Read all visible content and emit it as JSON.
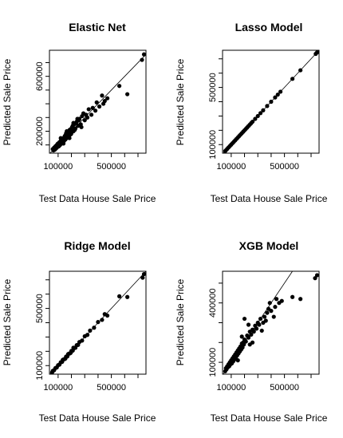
{
  "chart_data": [
    {
      "type": "scatter",
      "title": "Elastic Net",
      "xlabel": "Test Data House Sale Price",
      "ylabel": "Predicted Sale Price",
      "xlim": [
        35000,
        760000
      ],
      "ylim": [
        40000,
        790000
      ],
      "x_ticks": [
        100000,
        500000
      ],
      "x_tick_labels": [
        "100000",
        "500000"
      ],
      "y_ticks": [
        200000,
        600000
      ],
      "y_tick_labels": [
        "200000",
        "600000"
      ],
      "reference_line": "y = x",
      "points": [
        [
          745000,
          760000
        ],
        [
          730000,
          720000
        ],
        [
          620000,
          470000
        ],
        [
          560000,
          530000
        ],
        [
          470000,
          440000
        ],
        [
          430000,
          460000
        ],
        [
          440000,
          400000
        ],
        [
          390000,
          410000
        ],
        [
          360000,
          370000
        ],
        [
          330000,
          360000
        ],
        [
          310000,
          320000
        ],
        [
          300000,
          280000
        ],
        [
          280000,
          310000
        ],
        [
          270000,
          250000
        ],
        [
          260000,
          290000
        ],
        [
          250000,
          240000
        ],
        [
          240000,
          270000
        ],
        [
          230000,
          220000
        ],
        [
          220000,
          250000
        ],
        [
          215000,
          200000
        ],
        [
          205000,
          230000
        ],
        [
          200000,
          190000
        ],
        [
          195000,
          215000
        ],
        [
          190000,
          175000
        ],
        [
          185000,
          205000
        ],
        [
          180000,
          160000
        ],
        [
          175000,
          190000
        ],
        [
          170000,
          170000
        ],
        [
          165000,
          150000
        ],
        [
          160000,
          185000
        ],
        [
          155000,
          140000
        ],
        [
          150000,
          165000
        ],
        [
          145000,
          130000
        ],
        [
          140000,
          150000
        ],
        [
          135000,
          120000
        ],
        [
          130000,
          140000
        ],
        [
          125000,
          110000
        ],
        [
          120000,
          130000
        ],
        [
          115000,
          100000
        ],
        [
          110000,
          120000
        ],
        [
          105000,
          90000
        ],
        [
          100000,
          105000
        ],
        [
          95000,
          85000
        ],
        [
          90000,
          100000
        ],
        [
          85000,
          75000
        ],
        [
          80000,
          90000
        ],
        [
          75000,
          65000
        ],
        [
          70000,
          80000
        ],
        [
          65000,
          60000
        ],
        [
          60000,
          70000
        ],
        [
          350000,
          320000
        ],
        [
          320000,
          300000
        ],
        [
          290000,
          330000
        ],
        [
          275000,
          230000
        ],
        [
          255000,
          280000
        ],
        [
          235000,
          260000
        ],
        [
          225000,
          210000
        ],
        [
          210000,
          240000
        ],
        [
          198000,
          180000
        ],
        [
          187000,
          210000
        ],
        [
          178000,
          195000
        ],
        [
          168000,
          160000
        ],
        [
          158000,
          175000
        ],
        [
          148000,
          155000
        ],
        [
          138000,
          135000
        ],
        [
          128000,
          125000
        ],
        [
          118000,
          115000
        ],
        [
          108000,
          95000
        ],
        [
          98000,
          110000
        ],
        [
          88000,
          80000
        ],
        [
          78000,
          70000
        ],
        [
          380000,
          350000
        ],
        [
          410000,
          380000
        ],
        [
          450000,
          420000
        ],
        [
          245000,
          290000
        ],
        [
          215000,
          260000
        ],
        [
          185000,
          150000
        ],
        [
          165000,
          200000
        ],
        [
          140000,
          110000
        ],
        [
          120000,
          150000
        ]
      ]
    },
    {
      "type": "scatter",
      "title": "Lasso Model",
      "xlabel": "Test Data House Sale Price",
      "ylabel": "Predicted Sale Price",
      "xlim": [
        35000,
        760000
      ],
      "ylim": [
        40000,
        760000
      ],
      "x_ticks": [
        100000,
        500000
      ],
      "x_tick_labels": [
        "100000",
        "500000"
      ],
      "y_ticks": [
        100000,
        500000
      ],
      "y_tick_labels": [
        "100000",
        "500000"
      ],
      "reference_line": "y = x",
      "points": [
        [
          745000,
          745000
        ],
        [
          735000,
          735000
        ],
        [
          620000,
          620000
        ],
        [
          560000,
          560000
        ],
        [
          470000,
          470000
        ],
        [
          450000,
          450000
        ],
        [
          430000,
          430000
        ],
        [
          400000,
          400000
        ],
        [
          370000,
          370000
        ],
        [
          340000,
          340000
        ],
        [
          320000,
          320000
        ],
        [
          300000,
          300000
        ],
        [
          280000,
          280000
        ],
        [
          260000,
          260000
        ],
        [
          250000,
          250000
        ],
        [
          240000,
          240000
        ],
        [
          230000,
          230000
        ],
        [
          220000,
          220000
        ],
        [
          210000,
          210000
        ],
        [
          200000,
          200000
        ],
        [
          190000,
          190000
        ],
        [
          180000,
          180000
        ],
        [
          170000,
          170000
        ],
        [
          160000,
          160000
        ],
        [
          150000,
          150000
        ],
        [
          140000,
          140000
        ],
        [
          130000,
          130000
        ],
        [
          120000,
          120000
        ],
        [
          110000,
          110000
        ],
        [
          100000,
          100000
        ],
        [
          90000,
          90000
        ],
        [
          80000,
          80000
        ],
        [
          70000,
          70000
        ],
        [
          60000,
          60000
        ],
        [
          55000,
          55000
        ]
      ]
    },
    {
      "type": "scatter",
      "title": "Ridge Model",
      "xlabel": "Test Data House Sale Price",
      "ylabel": "Predicted Sale Price",
      "xlim": [
        35000,
        760000
      ],
      "ylim": [
        40000,
        760000
      ],
      "x_ticks": [
        100000,
        500000
      ],
      "x_tick_labels": [
        "100000",
        "500000"
      ],
      "y_ticks": [
        100000,
        500000
      ],
      "y_tick_labels": [
        "100000",
        "500000"
      ],
      "reference_line": "y = x",
      "points": [
        [
          745000,
          740000
        ],
        [
          735000,
          715000
        ],
        [
          620000,
          580000
        ],
        [
          560000,
          585000
        ],
        [
          470000,
          450000
        ],
        [
          450000,
          460000
        ],
        [
          430000,
          420000
        ],
        [
          400000,
          405000
        ],
        [
          370000,
          365000
        ],
        [
          340000,
          345000
        ],
        [
          320000,
          315000
        ],
        [
          300000,
          305000
        ],
        [
          280000,
          275000
        ],
        [
          260000,
          265000
        ],
        [
          250000,
          245000
        ],
        [
          240000,
          243000
        ],
        [
          230000,
          225000
        ],
        [
          220000,
          222000
        ],
        [
          210000,
          205000
        ],
        [
          200000,
          203000
        ],
        [
          190000,
          186000
        ],
        [
          180000,
          183000
        ],
        [
          170000,
          165000
        ],
        [
          160000,
          163000
        ],
        [
          150000,
          146000
        ],
        [
          140000,
          143000
        ],
        [
          130000,
          126000
        ],
        [
          120000,
          123000
        ],
        [
          110000,
          107000
        ],
        [
          100000,
          103000
        ],
        [
          90000,
          87000
        ],
        [
          80000,
          83000
        ],
        [
          70000,
          68000
        ],
        [
          60000,
          63000
        ],
        [
          55000,
          52000
        ],
        [
          215000,
          225000
        ],
        [
          195000,
          190000
        ],
        [
          175000,
          180000
        ],
        [
          155000,
          150000
        ],
        [
          135000,
          140000
        ]
      ]
    },
    {
      "type": "scatter",
      "title": "XGB Model",
      "xlabel": "Test Data House Sale Price",
      "ylabel": "Predicted Sale Price",
      "xlim": [
        35000,
        760000
      ],
      "ylim": [
        40000,
        560000
      ],
      "x_ticks": [
        100000,
        500000
      ],
      "x_tick_labels": [
        "100000",
        "500000"
      ],
      "y_ticks": [
        100000,
        400000
      ],
      "y_tick_labels": [
        "100000",
        "400000"
      ],
      "reference_line": "y = x",
      "points": [
        [
          745000,
          540000
        ],
        [
          730000,
          525000
        ],
        [
          620000,
          420000
        ],
        [
          560000,
          430000
        ],
        [
          480000,
          410000
        ],
        [
          460000,
          400000
        ],
        [
          440000,
          420000
        ],
        [
          430000,
          380000
        ],
        [
          400000,
          360000
        ],
        [
          380000,
          370000
        ],
        [
          370000,
          350000
        ],
        [
          350000,
          330000
        ],
        [
          340000,
          300000
        ],
        [
          320000,
          320000
        ],
        [
          310000,
          290000
        ],
        [
          300000,
          300000
        ],
        [
          290000,
          270000
        ],
        [
          280000,
          285000
        ],
        [
          270000,
          255000
        ],
        [
          260000,
          265000
        ],
        [
          250000,
          240000
        ],
        [
          240000,
          255000
        ],
        [
          230000,
          225000
        ],
        [
          220000,
          235000
        ],
        [
          210000,
          205000
        ],
        [
          200000,
          215000
        ],
        [
          195000,
          190000
        ],
        [
          190000,
          200000
        ],
        [
          185000,
          175000
        ],
        [
          180000,
          195000
        ],
        [
          175000,
          165000
        ],
        [
          170000,
          180000
        ],
        [
          165000,
          155000
        ],
        [
          160000,
          170000
        ],
        [
          155000,
          145000
        ],
        [
          150000,
          160000
        ],
        [
          145000,
          135000
        ],
        [
          140000,
          150000
        ],
        [
          135000,
          125000
        ],
        [
          130000,
          140000
        ],
        [
          125000,
          115000
        ],
        [
          120000,
          130000
        ],
        [
          115000,
          105000
        ],
        [
          110000,
          120000
        ],
        [
          105000,
          95000
        ],
        [
          100000,
          110000
        ],
        [
          95000,
          90000
        ],
        [
          90000,
          100000
        ],
        [
          85000,
          80000
        ],
        [
          80000,
          90000
        ],
        [
          75000,
          75000
        ],
        [
          70000,
          80000
        ],
        [
          65000,
          65000
        ],
        [
          60000,
          70000
        ],
        [
          55000,
          55000
        ],
        [
          200000,
          320000
        ],
        [
          230000,
          290000
        ],
        [
          330000,
          260000
        ],
        [
          360000,
          310000
        ],
        [
          420000,
          330000
        ],
        [
          390000,
          400000
        ],
        [
          260000,
          200000
        ],
        [
          180000,
          230000
        ],
        [
          150000,
          110000
        ],
        [
          240000,
          190000
        ]
      ]
    }
  ]
}
